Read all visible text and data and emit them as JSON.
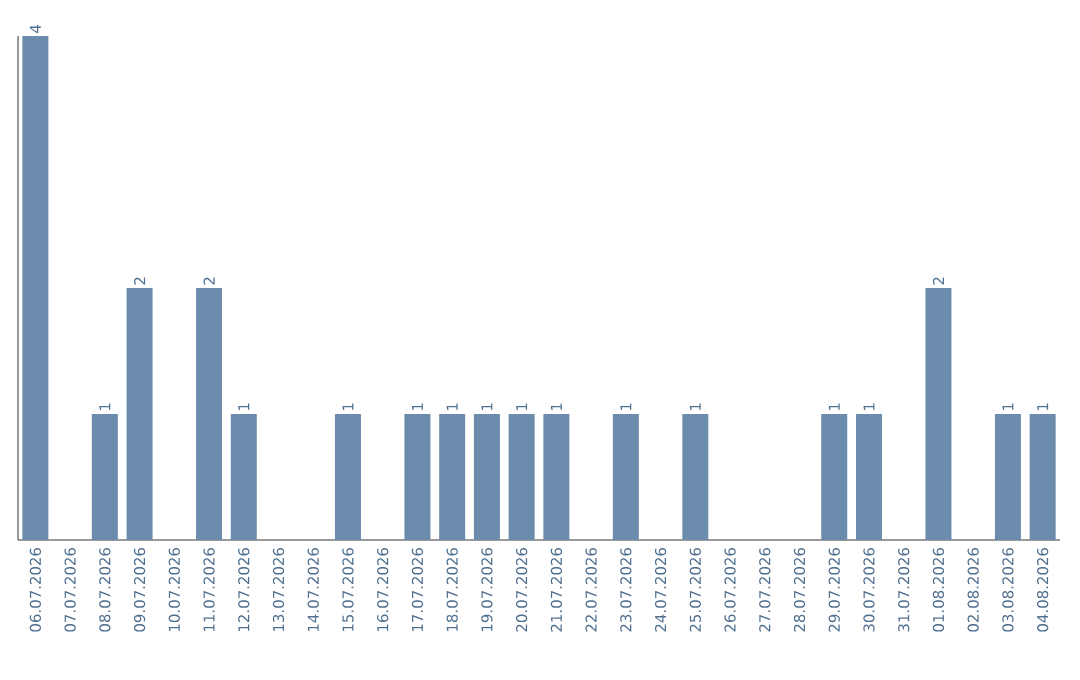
{
  "chart_data": {
    "type": "bar",
    "color": "#6b8cad",
    "categories": [
      "06.07.2026",
      "07.07.2026",
      "08.07.2026",
      "09.07.2026",
      "10.07.2026",
      "11.07.2026",
      "12.07.2026",
      "13.07.2026",
      "14.07.2026",
      "15.07.2026",
      "16.07.2026",
      "17.07.2026",
      "18.07.2026",
      "19.07.2026",
      "20.07.2026",
      "21.07.2026",
      "22.07.2026",
      "23.07.2026",
      "24.07.2026",
      "25.07.2026",
      "26.07.2026",
      "27.07.2026",
      "28.07.2026",
      "29.07.2026",
      "30.07.2026",
      "31.07.2026",
      "01.08.2026",
      "02.08.2026",
      "03.08.2026",
      "04.08.2026"
    ],
    "values": [
      4,
      0,
      1,
      2,
      0,
      2,
      1,
      0,
      0,
      1,
      0,
      1,
      1,
      1,
      1,
      1,
      0,
      1,
      0,
      1,
      0,
      0,
      0,
      1,
      1,
      0,
      2,
      0,
      1,
      1
    ],
    "value_labels": [
      "4",
      null,
      "1",
      "2",
      null,
      "2",
      "1",
      null,
      null,
      "1",
      null,
      "1",
      "1",
      "1",
      "1",
      "1",
      null,
      "1",
      null,
      "1",
      null,
      null,
      null,
      "1",
      "1",
      null,
      "2",
      null,
      "1",
      "1"
    ]
  }
}
